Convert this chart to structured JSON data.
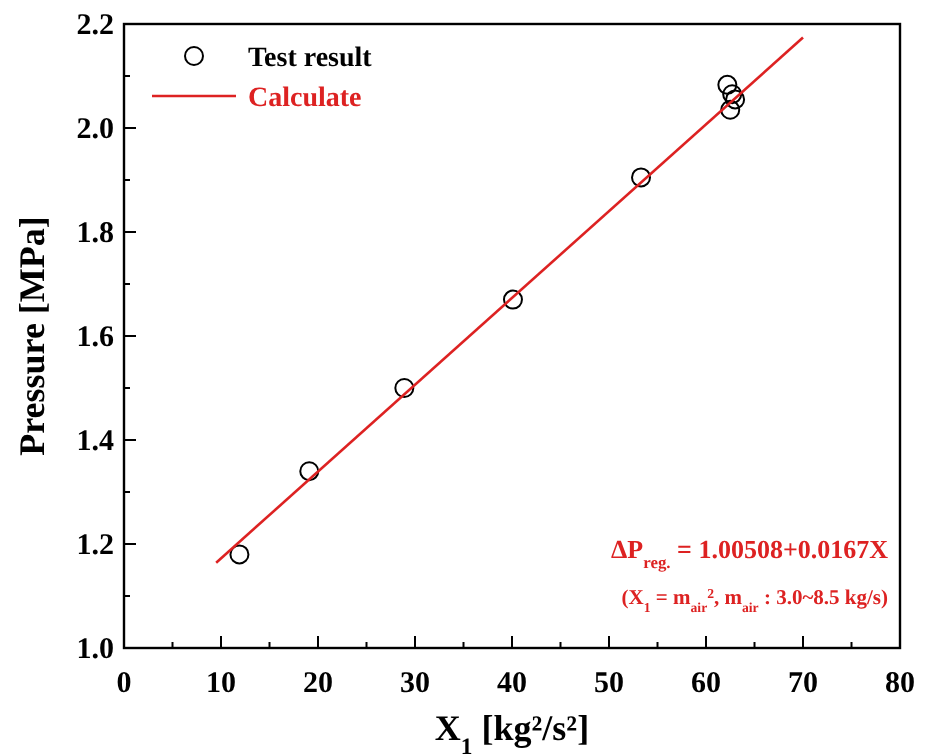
{
  "chart_data": {
    "type": "scatter",
    "xlabel": "X$_{1}$ [kg²/s²]",
    "ylabel": "Pressure [MPa]",
    "xlim": [
      0,
      80
    ],
    "ylim": [
      1.0,
      2.2
    ],
    "xticks": [
      0,
      {
        "value": 5,
        "label": null
      },
      10,
      {
        "value": 15,
        "label": null
      },
      20,
      {
        "value": 25,
        "label": null
      },
      30,
      {
        "value": 35,
        "label": null
      },
      40,
      {
        "value": 45,
        "label": null
      },
      50,
      {
        "value": 55,
        "label": null
      },
      60,
      {
        "value": 65,
        "label": null
      },
      70,
      {
        "value": 75,
        "label": null
      },
      80
    ],
    "yticks": [
      {
        "value": 1.0,
        "label": "1.0"
      },
      {
        "value": 1.1,
        "label": null
      },
      {
        "value": 1.2,
        "label": "1.2"
      },
      {
        "value": 1.3,
        "label": null
      },
      {
        "value": 1.4,
        "label": "1.4"
      },
      {
        "value": 1.5,
        "label": null
      },
      {
        "value": 1.6,
        "label": "1.6"
      },
      {
        "value": 1.7,
        "label": null
      },
      {
        "value": 1.8,
        "label": "1.8"
      },
      {
        "value": 1.9,
        "label": null
      },
      {
        "value": 2.0,
        "label": "2.0"
      },
      {
        "value": 2.1,
        "label": null
      },
      {
        "value": 2.2,
        "label": "2.2"
      }
    ],
    "series": [
      {
        "name": "Test result",
        "color": "#000000",
        "marker": "circle",
        "x": [
          11.9,
          19.1,
          28.9,
          40.1,
          53.3,
          62.2,
          62.5,
          62.7,
          63.0
        ],
        "values": [
          1.18,
          1.34,
          1.5,
          1.67,
          1.905,
          2.083,
          2.035,
          2.065,
          2.055
        ]
      },
      {
        "name": "Calculate",
        "type": "line",
        "color": "#dd2222",
        "x": [
          9.5,
          70
        ],
        "values": [
          1.164,
          2.174
        ]
      }
    ],
    "legend": "top left",
    "grid": false,
    "annotations": [
      "ΔP$_{reg.}$ = 1.00508+0.0167X",
      "(X$_{1}$ = m$_{air}$$^{2}$, m$_{air}$ : 3.0~8.5 kg/s)"
    ]
  }
}
